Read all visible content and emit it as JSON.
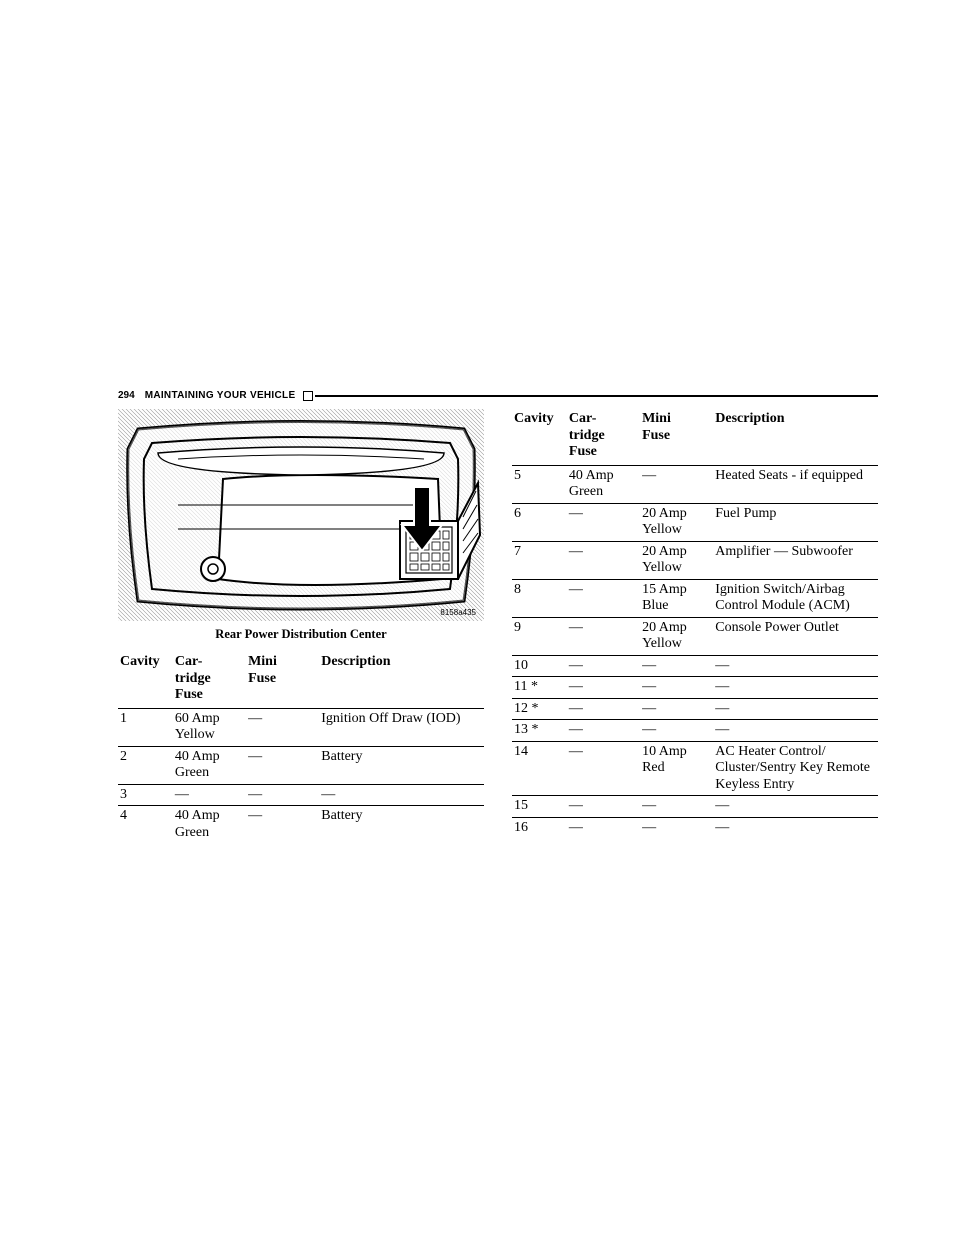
{
  "page_number": "294",
  "section_title": "MAINTAINING YOUR VEHICLE",
  "caption": "Rear Power Distribution Center",
  "figure_code": "8158a435",
  "table_headers": {
    "cavity": "Cavity",
    "cartridge": "Car-\ntridge\nFuse",
    "mini": "Mini\nFuse",
    "description": "Description"
  },
  "left_rows": [
    {
      "cavity": "1",
      "cartridge": "60 Amp Yellow",
      "mini": "—",
      "description": "Ignition Off Draw (IOD)"
    },
    {
      "cavity": "2",
      "cartridge": "40 Amp Green",
      "mini": "—",
      "description": "Battery"
    },
    {
      "cavity": "3",
      "cartridge": "—",
      "mini": "—",
      "description": "—"
    },
    {
      "cavity": "4",
      "cartridge": "40 Amp Green",
      "mini": "—",
      "description": "Battery"
    }
  ],
  "right_rows": [
    {
      "cavity": "5",
      "cartridge": "40 Amp Green",
      "mini": "—",
      "description": "Heated Seats - if equipped"
    },
    {
      "cavity": "6",
      "cartridge": "—",
      "mini": "20 Amp Yellow",
      "description": "Fuel Pump"
    },
    {
      "cavity": "7",
      "cartridge": "—",
      "mini": "20 Amp Yellow",
      "description": "Amplifier — Subwoofer"
    },
    {
      "cavity": "8",
      "cartridge": "—",
      "mini": "15 Amp Blue",
      "description": "Ignition Switch/Airbag Control Module (ACM)"
    },
    {
      "cavity": "9",
      "cartridge": "—",
      "mini": "20 Amp Yellow",
      "description": "Console Power Outlet"
    },
    {
      "cavity": "10",
      "cartridge": "—",
      "mini": "—",
      "description": "—"
    },
    {
      "cavity": "11 *",
      "cartridge": "—",
      "mini": "—",
      "description": "—"
    },
    {
      "cavity": "12 *",
      "cartridge": "—",
      "mini": "—",
      "description": "—"
    },
    {
      "cavity": "13 *",
      "cartridge": "—",
      "mini": "—",
      "description": "—"
    },
    {
      "cavity": "14",
      "cartridge": "—",
      "mini": "10 Amp Red",
      "description": "AC Heater Control/ Cluster/Sentry Key Remote Keyless Entry"
    },
    {
      "cavity": "15",
      "cartridge": "—",
      "mini": "—",
      "description": "—"
    },
    {
      "cavity": "16",
      "cartridge": "—",
      "mini": "—",
      "description": "—"
    }
  ]
}
